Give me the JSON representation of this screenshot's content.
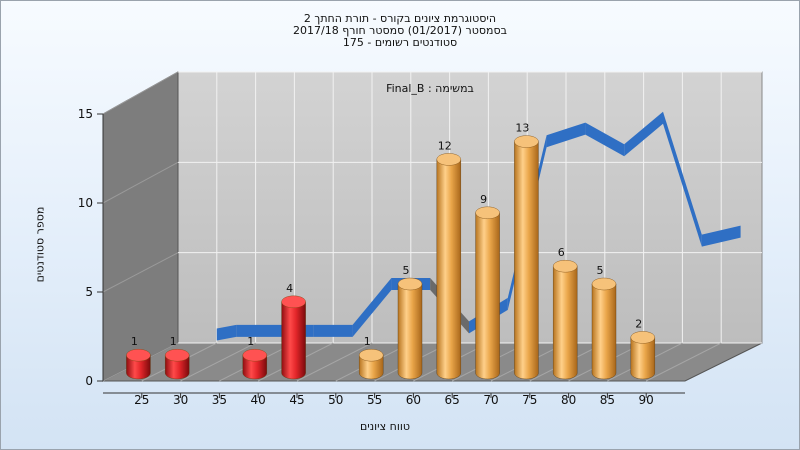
{
  "chart_data": {
    "type": "bar",
    "title_lines": [
      "היסטוגרמת ציונים בקורס - תורת החתך 2",
      "בסמסטר  (01/2017)  סמסטר חורף 2017/18",
      "סטודנטים רשומים - 175"
    ],
    "annotation": "במשימה : Final_B",
    "xlabel": "טווח ציונים",
    "ylabel": "מספר סטודנטים",
    "x_ticks": [
      "25",
      "30",
      "35",
      "40",
      "45",
      "50",
      "55",
      "60",
      "65",
      "70",
      "75",
      "80",
      "85",
      "90"
    ],
    "y_ticks": [
      0,
      5,
      10,
      15
    ],
    "ylim": [
      0,
      15
    ],
    "bars": [
      {
        "x": 25,
        "value": 1,
        "color": "red"
      },
      {
        "x": 30,
        "value": 1,
        "color": "red"
      },
      {
        "x": 40,
        "value": 1,
        "color": "red"
      },
      {
        "x": 45,
        "value": 4,
        "color": "red"
      },
      {
        "x": 55,
        "value": 1,
        "color": "orange"
      },
      {
        "x": 60,
        "value": 5,
        "color": "orange"
      },
      {
        "x": 65,
        "value": 12,
        "color": "orange"
      },
      {
        "x": 70,
        "value": 9,
        "color": "orange"
      },
      {
        "x": 75,
        "value": 13,
        "color": "orange"
      },
      {
        "x": 80,
        "value": 6,
        "color": "orange"
      },
      {
        "x": 85,
        "value": 5,
        "color": "orange"
      },
      {
        "x": 90,
        "value": 2,
        "color": "orange"
      }
    ],
    "trend": {
      "x": [
        27.5,
        30,
        35,
        40,
        45,
        50,
        55,
        60,
        65,
        70,
        75,
        80,
        85,
        90,
        95
      ],
      "y": [
        0.8,
        1.0,
        1.0,
        1.0,
        1.0,
        3.6,
        3.6,
        1.2,
        2.5,
        11.5,
        12.2,
        11.0,
        12.8,
        6.0,
        6.5
      ],
      "colors": {
        "high": "#2f6fc4",
        "low": "#6a6a6a"
      }
    },
    "colors": {
      "red": "#e3262a",
      "orange": "#eaa64a",
      "wall": "#c9c9c9",
      "side_wall": "#7d7d7d",
      "floor": "#8a8a8a"
    }
  }
}
